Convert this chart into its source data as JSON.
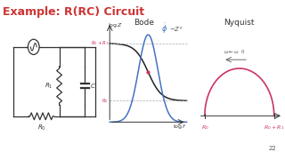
{
  "title": "Example: R(RC) Circuit",
  "title_color": "#cc3333",
  "title_fontsize": 9,
  "bg_color": "#ffffff",
  "bottom_bar_color": "#d94f8a",
  "bottom_bar_gold": "#e8b84b",
  "slide_number": "22",
  "bode_title": "Bode",
  "nyquist_title": "Nyquist",
  "bode_mag_color": "#222222",
  "bode_phase_color": "#4472c4",
  "nyquist_color": "#cc3366",
  "circuit_color": "#333333",
  "axis_color": "#333333",
  "ref_color": "#cc3366",
  "gray_color": "#aaaaaa"
}
